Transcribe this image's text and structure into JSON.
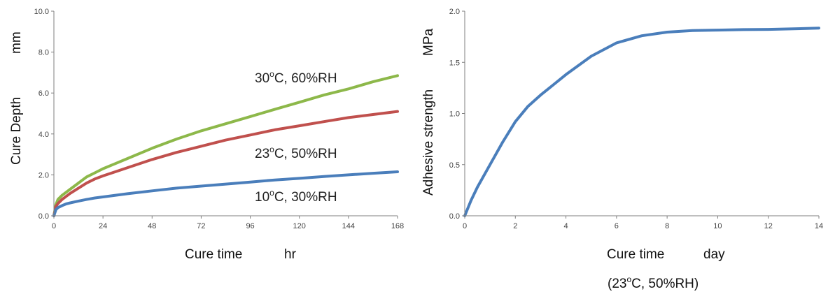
{
  "chart_data": [
    {
      "type": "line",
      "xlabel_main": "Cure time",
      "xlabel_unit": "hr",
      "ylabel_main": "Cure Depth",
      "ylabel_unit": "mm",
      "xlim": [
        0,
        168
      ],
      "ylim": [
        0,
        10
      ],
      "x_ticks": [
        0,
        24,
        48,
        72,
        96,
        120,
        144,
        168
      ],
      "y_ticks": [
        "0.0",
        "2.0",
        "4.0",
        "6.0",
        "8.0",
        "10.0"
      ],
      "series": [
        {
          "name": "30°C, 60%RH",
          "label_main": "30",
          "label_sup": "o",
          "label_rest": "C, 60%RH",
          "color": "#8db84a",
          "x": [
            0,
            1,
            2,
            4,
            6,
            8,
            12,
            16,
            20,
            24,
            30,
            36,
            48,
            60,
            72,
            84,
            96,
            108,
            120,
            132,
            144,
            156,
            168
          ],
          "y": [
            0,
            0.55,
            0.8,
            1.0,
            1.15,
            1.3,
            1.6,
            1.9,
            2.1,
            2.3,
            2.55,
            2.8,
            3.3,
            3.75,
            4.15,
            4.5,
            4.85,
            5.2,
            5.55,
            5.9,
            6.2,
            6.55,
            6.85
          ]
        },
        {
          "name": "23°C, 50%RH",
          "label_main": "23",
          "label_sup": "o",
          "label_rest": "C, 50%RH",
          "color": "#c0504d",
          "x": [
            0,
            1,
            2,
            4,
            6,
            8,
            12,
            16,
            20,
            24,
            30,
            36,
            48,
            60,
            72,
            84,
            96,
            108,
            120,
            132,
            144,
            156,
            168
          ],
          "y": [
            0,
            0.45,
            0.6,
            0.8,
            0.95,
            1.1,
            1.35,
            1.6,
            1.8,
            1.95,
            2.15,
            2.35,
            2.75,
            3.1,
            3.4,
            3.7,
            3.95,
            4.2,
            4.4,
            4.6,
            4.8,
            4.95,
            5.1
          ]
        },
        {
          "name": "10°C, 30%RH",
          "label_main": "10",
          "label_sup": "o",
          "label_rest": "C, 30%RH",
          "color": "#4a7ebb",
          "x": [
            0,
            1,
            2,
            4,
            6,
            8,
            12,
            16,
            20,
            24,
            36,
            48,
            60,
            72,
            84,
            96,
            108,
            120,
            132,
            144,
            156,
            168
          ],
          "y": [
            0,
            0.3,
            0.4,
            0.5,
            0.58,
            0.63,
            0.72,
            0.8,
            0.87,
            0.92,
            1.08,
            1.22,
            1.35,
            1.45,
            1.55,
            1.65,
            1.75,
            1.83,
            1.92,
            2.0,
            2.08,
            2.15
          ]
        }
      ]
    },
    {
      "type": "line",
      "xlabel_main": "Cure time",
      "xlabel_unit": "day",
      "ylabel_main": "Adhesive strength",
      "ylabel_unit": "MPa",
      "caption_open": "(23",
      "caption_sup": "o",
      "caption_rest": "C, 50%RH)",
      "xlim": [
        0,
        14
      ],
      "ylim": [
        0,
        2
      ],
      "x_ticks": [
        0,
        2,
        4,
        6,
        8,
        10,
        12,
        14
      ],
      "y_ticks": [
        "0.0",
        "0.5",
        "1.0",
        "1.5",
        "2.0"
      ],
      "series": [
        {
          "color": "#4a7ebb",
          "x": [
            0,
            0.25,
            0.5,
            1,
            1.5,
            2,
            2.5,
            3,
            3.5,
            4,
            5,
            6,
            7,
            8,
            9,
            10,
            11,
            12,
            13,
            14
          ],
          "y": [
            0,
            0.15,
            0.28,
            0.5,
            0.72,
            0.92,
            1.07,
            1.18,
            1.28,
            1.38,
            1.56,
            1.69,
            1.76,
            1.795,
            1.81,
            1.815,
            1.82,
            1.822,
            1.827,
            1.835
          ]
        }
      ]
    }
  ]
}
